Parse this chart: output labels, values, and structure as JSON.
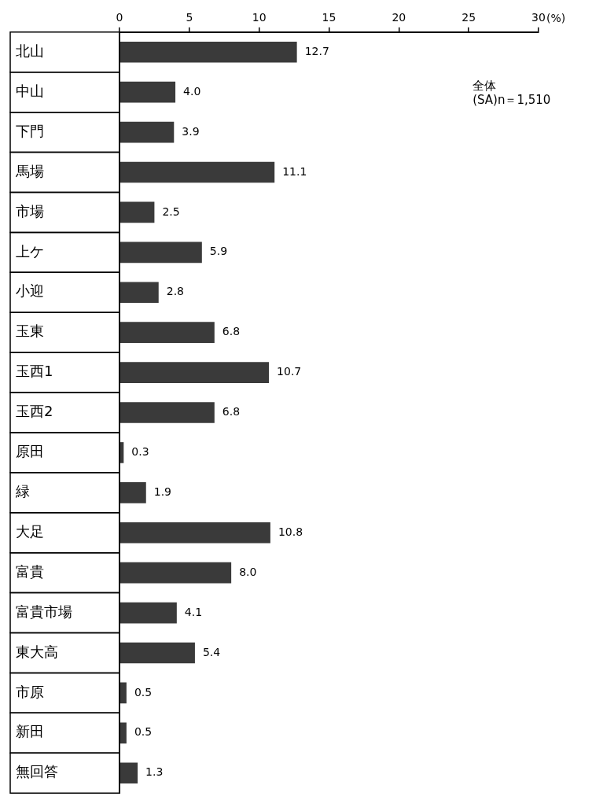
{
  "chart_data": {
    "type": "bar",
    "orientation": "horizontal",
    "xlabel": "(%)",
    "categories": [
      "北山",
      "中山",
      "下門",
      "馬場",
      "市場",
      "上ケ",
      "小迎",
      "玉東",
      "玉西1",
      "玉西2",
      "原田",
      "緑",
      "大足",
      "富貴",
      "富貴市場",
      "東大高",
      "市原",
      "新田",
      "無回答"
    ],
    "values": [
      12.7,
      4.0,
      3.9,
      11.1,
      2.5,
      5.9,
      2.8,
      6.8,
      10.7,
      6.8,
      0.3,
      1.9,
      10.8,
      8.0,
      4.1,
      5.4,
      0.5,
      0.5,
      1.3
    ],
    "value_labels": [
      "12.7",
      "4.0",
      "3.9",
      "11.1",
      "2.5",
      "5.9",
      "2.8",
      "6.8",
      "10.7",
      "6.8",
      "0.3",
      "1.9",
      "10.8",
      "8.0",
      "4.1",
      "5.4",
      "0.5",
      "0.5",
      "1.3"
    ],
    "color": "#3a3a3a",
    "xlim": [
      0,
      30
    ],
    "xticks": [
      0,
      5,
      10,
      15,
      20,
      25,
      30
    ],
    "grid": false,
    "legend": false,
    "annotations": [
      "全体",
      "(SA)n＝1,510"
    ]
  }
}
